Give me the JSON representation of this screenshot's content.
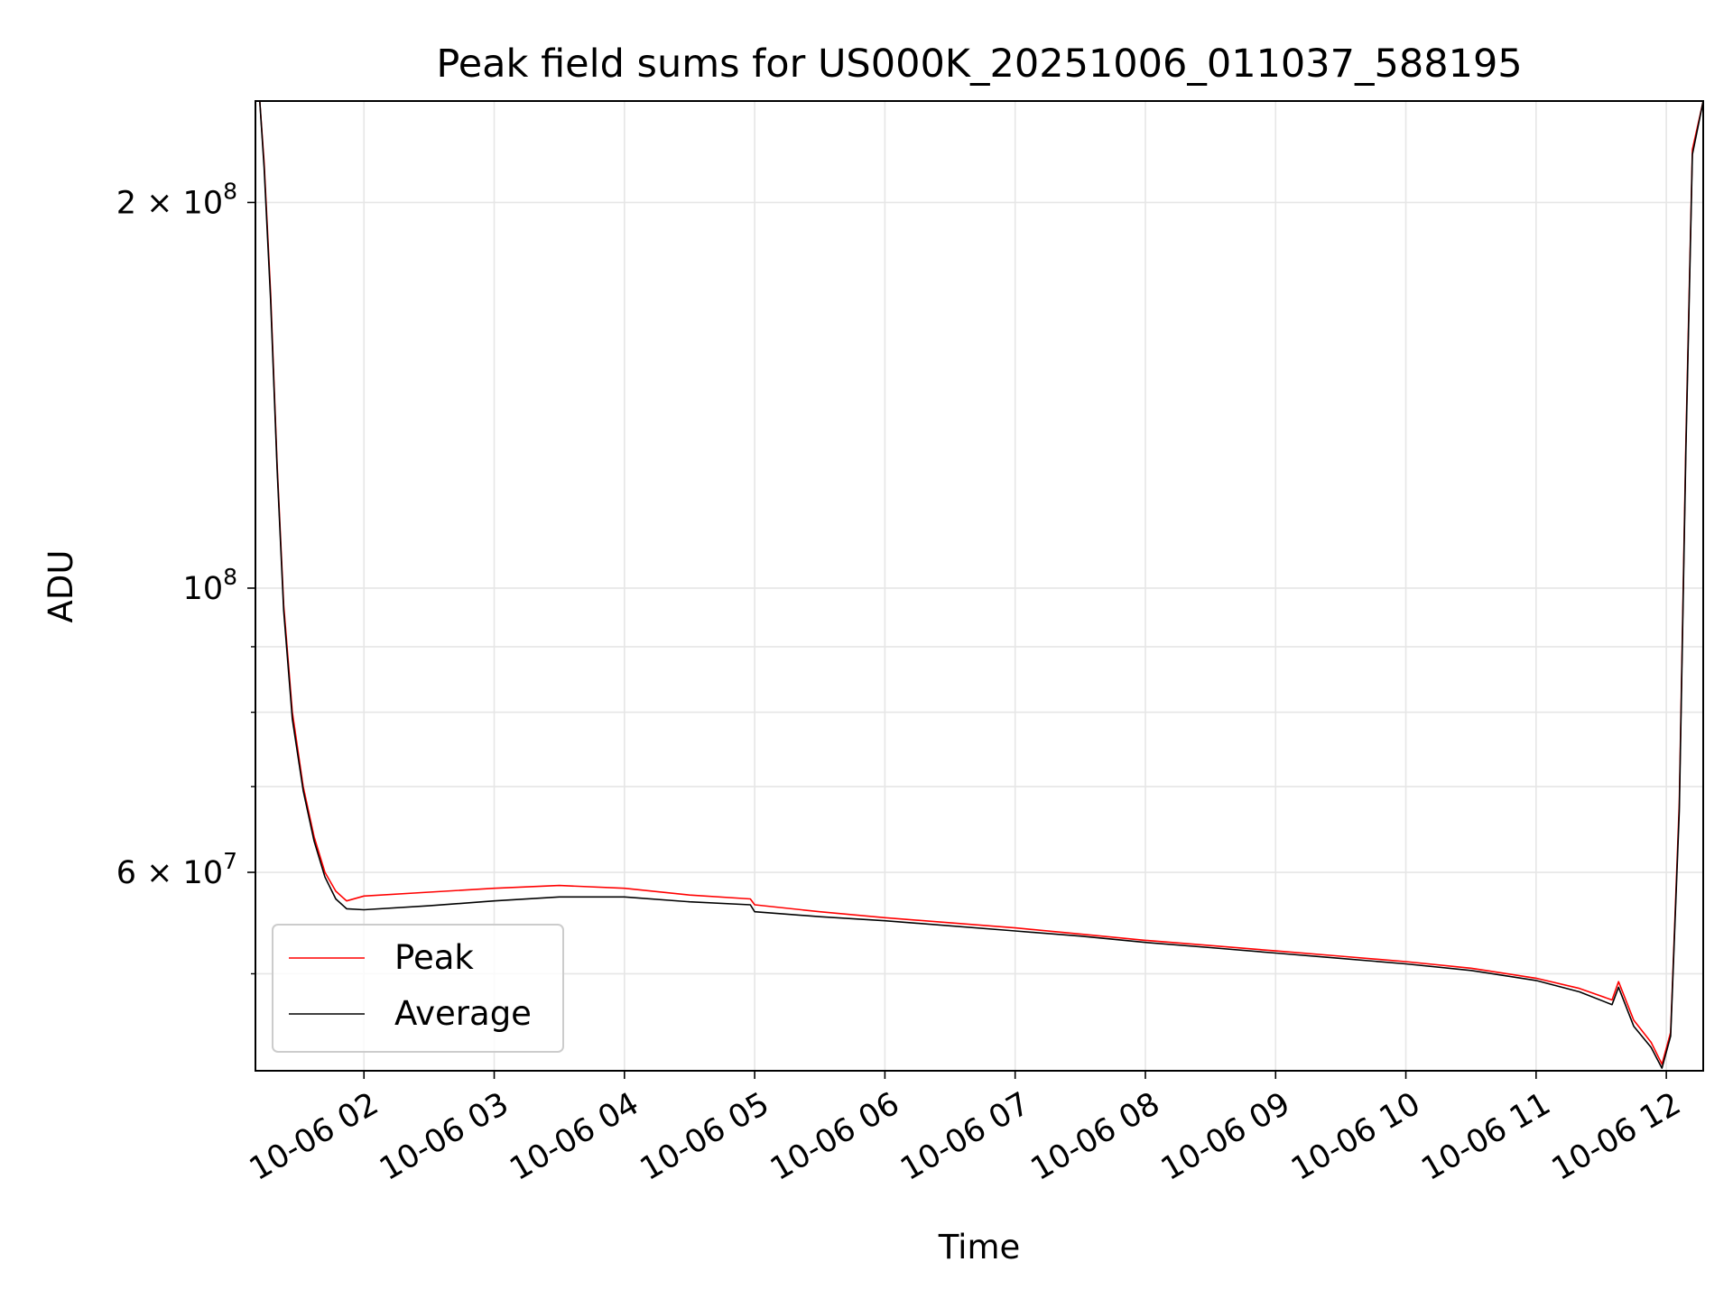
{
  "chart_data": {
    "type": "line",
    "title": "Peak field sums for US000K_20251006_011037_588195",
    "xlabel": "Time",
    "ylabel": "ADU",
    "yscale": "log",
    "grid": true,
    "legend_position": "lower-left",
    "xlim": [
      "2025-10-06 01:10",
      "2025-10-06 12:17"
    ],
    "ylim": [
      42000000,
      240000000
    ],
    "x_ticks": [
      {
        "label": "10-06 02",
        "value": "2025-10-06 02:00"
      },
      {
        "label": "10-06 03",
        "value": "2025-10-06 03:00"
      },
      {
        "label": "10-06 04",
        "value": "2025-10-06 04:00"
      },
      {
        "label": "10-06 05",
        "value": "2025-10-06 05:00"
      },
      {
        "label": "10-06 06",
        "value": "2025-10-06 06:00"
      },
      {
        "label": "10-06 07",
        "value": "2025-10-06 07:00"
      },
      {
        "label": "10-06 08",
        "value": "2025-10-06 08:00"
      },
      {
        "label": "10-06 09",
        "value": "2025-10-06 09:00"
      },
      {
        "label": "10-06 10",
        "value": "2025-10-06 10:00"
      },
      {
        "label": "10-06 11",
        "value": "2025-10-06 11:00"
      },
      {
        "label": "10-06 12",
        "value": "2025-10-06 12:00"
      }
    ],
    "y_ticks": [
      {
        "base": "2 × 10",
        "exp": "8",
        "value": 200000000
      },
      {
        "base": "10",
        "exp": "8",
        "value": 100000000
      },
      {
        "base": "6 × 10",
        "exp": "7",
        "value": 60000000
      }
    ],
    "y_minor_ticks": [
      50000000,
      70000000,
      80000000,
      90000000
    ],
    "series": [
      {
        "name": "Peak",
        "color": "#ff0000",
        "x": [
          "2025-10-06 01:10",
          "2025-10-06 01:12",
          "2025-10-06 01:14",
          "2025-10-06 01:17",
          "2025-10-06 01:20",
          "2025-10-06 01:23",
          "2025-10-06 01:27",
          "2025-10-06 01:32",
          "2025-10-06 01:37",
          "2025-10-06 01:42",
          "2025-10-06 01:47",
          "2025-10-06 01:52",
          "2025-10-06 02:00",
          "2025-10-06 02:30",
          "2025-10-06 03:00",
          "2025-10-06 03:30",
          "2025-10-06 04:00",
          "2025-10-06 04:30",
          "2025-10-06 04:58",
          "2025-10-06 05:00",
          "2025-10-06 05:30",
          "2025-10-06 06:00",
          "2025-10-06 06:30",
          "2025-10-06 07:00",
          "2025-10-06 07:30",
          "2025-10-06 08:00",
          "2025-10-06 08:30",
          "2025-10-06 09:00",
          "2025-10-06 09:30",
          "2025-10-06 10:00",
          "2025-10-06 10:30",
          "2025-10-06 11:00",
          "2025-10-06 11:20",
          "2025-10-06 11:35",
          "2025-10-06 11:38",
          "2025-10-06 11:45",
          "2025-10-06 11:53",
          "2025-10-06 11:58",
          "2025-10-06 12:02",
          "2025-10-06 12:06",
          "2025-10-06 12:09",
          "2025-10-06 12:12",
          "2025-10-06 12:17"
        ],
        "y": [
          240000000,
          240000000,
          215000000,
          170000000,
          125000000,
          97000000,
          80000000,
          70000000,
          64000000,
          60000000,
          58000000,
          57000000,
          57500000,
          57900000,
          58300000,
          58600000,
          58300000,
          57600000,
          57200000,
          56600000,
          55900000,
          55300000,
          54800000,
          54300000,
          53700000,
          53100000,
          52600000,
          52100000,
          51600000,
          51100000,
          50500000,
          49600000,
          48700000,
          47700000,
          49300000,
          46000000,
          44200000,
          42500000,
          45000000,
          68000000,
          130000000,
          220000000,
          240000000
        ]
      },
      {
        "name": "Average",
        "color": "#000000",
        "x": [
          "2025-10-06 01:10",
          "2025-10-06 01:12",
          "2025-10-06 01:14",
          "2025-10-06 01:17",
          "2025-10-06 01:20",
          "2025-10-06 01:23",
          "2025-10-06 01:27",
          "2025-10-06 01:32",
          "2025-10-06 01:37",
          "2025-10-06 01:42",
          "2025-10-06 01:47",
          "2025-10-06 01:52",
          "2025-10-06 02:00",
          "2025-10-06 02:30",
          "2025-10-06 03:00",
          "2025-10-06 03:30",
          "2025-10-06 04:00",
          "2025-10-06 04:30",
          "2025-10-06 04:58",
          "2025-10-06 05:00",
          "2025-10-06 05:30",
          "2025-10-06 06:00",
          "2025-10-06 06:30",
          "2025-10-06 07:00",
          "2025-10-06 07:30",
          "2025-10-06 08:00",
          "2025-10-06 08:30",
          "2025-10-06 09:00",
          "2025-10-06 09:30",
          "2025-10-06 10:00",
          "2025-10-06 10:30",
          "2025-10-06 11:00",
          "2025-10-06 11:20",
          "2025-10-06 11:35",
          "2025-10-06 11:38",
          "2025-10-06 11:45",
          "2025-10-06 11:53",
          "2025-10-06 11:58",
          "2025-10-06 12:02",
          "2025-10-06 12:06",
          "2025-10-06 12:09",
          "2025-10-06 12:12",
          "2025-10-06 12:17"
        ],
        "y": [
          240000000,
          240000000,
          213000000,
          168000000,
          124000000,
          96000000,
          79000000,
          69500000,
          63500000,
          59500000,
          57200000,
          56200000,
          56100000,
          56500000,
          57000000,
          57400000,
          57400000,
          56900000,
          56600000,
          55900000,
          55400000,
          55000000,
          54500000,
          54000000,
          53500000,
          52900000,
          52400000,
          51900000,
          51400000,
          50900000,
          50300000,
          49400000,
          48400000,
          47300000,
          48800000,
          45500000,
          43800000,
          42200000,
          44700000,
          67000000,
          128000000,
          218000000,
          240000000
        ]
      }
    ]
  }
}
